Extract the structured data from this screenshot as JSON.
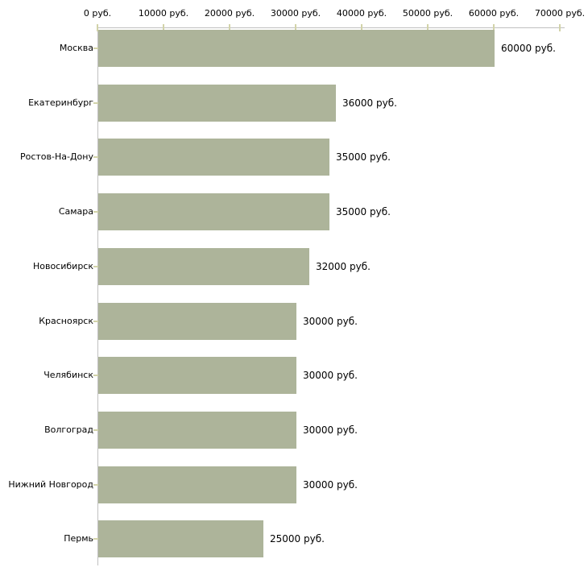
{
  "chart_data": {
    "type": "bar",
    "orientation": "horizontal",
    "title": "",
    "xlabel": "",
    "ylabel": "",
    "categories": [
      "Москва",
      "Екатеринбург",
      "Ростов-На-Дону",
      "Самара",
      "Новосибирск",
      "Красноярск",
      "Челябинск",
      "Волгоград",
      "Нижний Новгород",
      "Пермь"
    ],
    "values": [
      60000,
      36000,
      35000,
      35000,
      32000,
      30000,
      30000,
      30000,
      30000,
      25000
    ],
    "value_labels": [
      "60000 руб.",
      "36000 руб.",
      "35000 руб.",
      "35000 руб.",
      "32000 руб.",
      "30000 руб.",
      "30000 руб.",
      "30000 руб.",
      "30000 руб.",
      "25000 руб."
    ],
    "unit": "руб.",
    "x_ticks": [
      0,
      10000,
      20000,
      30000,
      40000,
      50000,
      60000,
      70000
    ],
    "x_tick_labels": [
      "0 руб.",
      "10000 руб.",
      "20000 руб.",
      "30000 руб.",
      "40000 руб.",
      "50000 руб.",
      "60000 руб.",
      "70000 руб."
    ],
    "xlim": [
      0,
      70000
    ],
    "grid": false,
    "legend": false,
    "colors": {
      "bar": "#adb49a",
      "axis": "#c0c0c0",
      "tick": "#d2d3a9",
      "text": "#000000",
      "background": "#ffffff"
    }
  }
}
